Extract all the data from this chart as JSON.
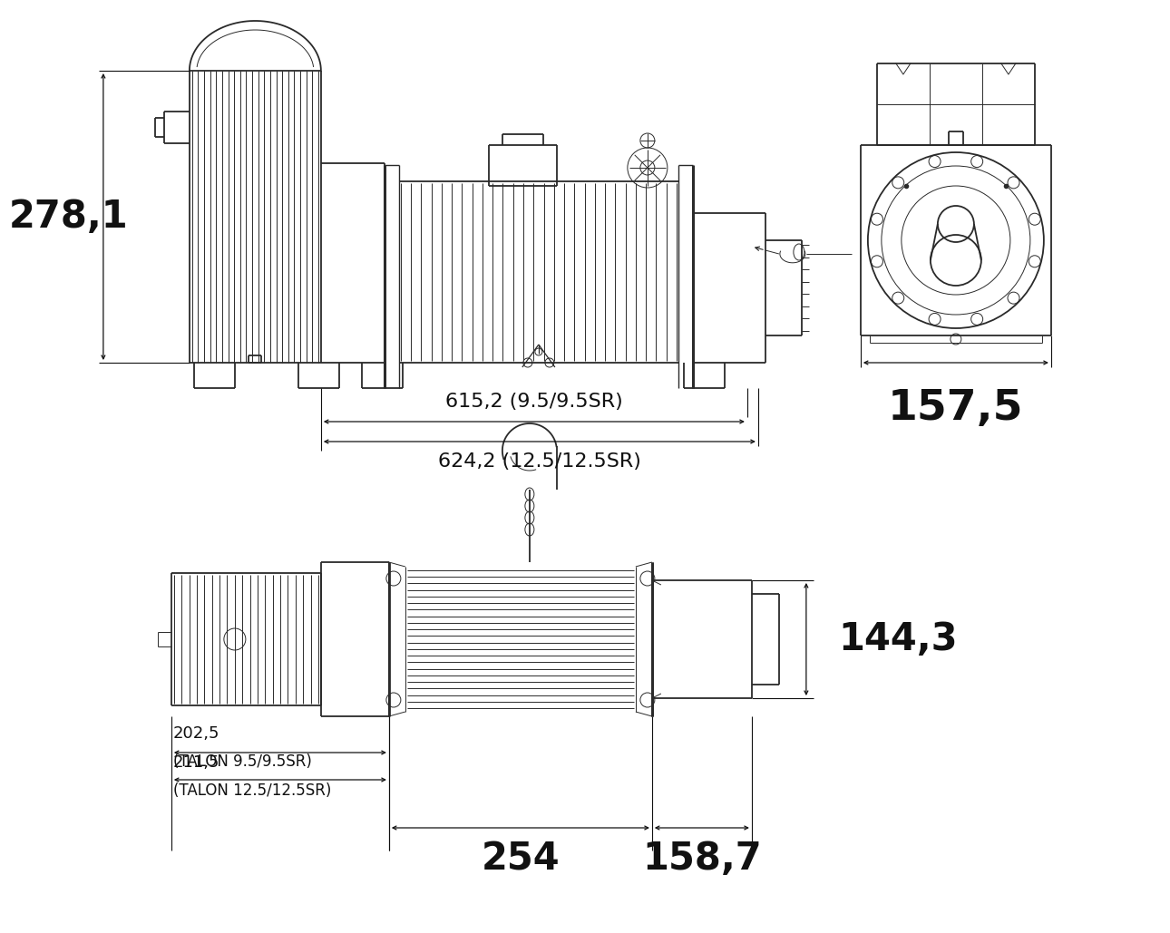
{
  "bg_color": "#ffffff",
  "line_color": "#2a2a2a",
  "dim_color": "#111111",
  "dim_278": "278,1",
  "dim_615": "615,2 (9.5/9.5SR)",
  "dim_624": "624,2 (12.5/12.5SR)",
  "dim_157": "157,5",
  "dim_144": "144,3",
  "dim_202": "202,5",
  "dim_202_label": "(TALON 9.5/9.5SR)",
  "dim_211": "211,5",
  "dim_211_label": "(TALON 12.5/12.5SR)",
  "dim_254": "254",
  "dim_158": "158,7",
  "font_large": 30,
  "font_med": 16,
  "font_small": 13
}
